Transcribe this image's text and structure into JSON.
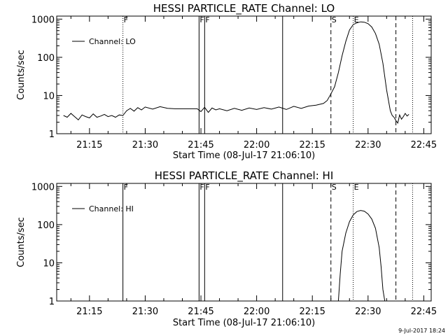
{
  "footer": {
    "date_stamp": "9-Jul-2017 18:24"
  },
  "chart_data": [
    {
      "type": "line",
      "title": "HESSI PARTICLE_RATE Channel: LO",
      "xlabel": "Start Time (08-Jul-17 21:06:10)",
      "ylabel": "Counts/sec",
      "legend": {
        "text": "Channel: LO",
        "position": "top-left"
      },
      "x_ticks": [
        "21:15",
        "21:30",
        "21:45",
        "22:00",
        "22:15",
        "22:30",
        "22:45"
      ],
      "x_tick_minutes": [
        15,
        30,
        45,
        60,
        75,
        90,
        105
      ],
      "xlim_minutes": [
        6.17,
        107
      ],
      "y_scale": "log",
      "y_ticks": [
        "1",
        "10",
        "100",
        "1000"
      ],
      "ylim": [
        1,
        1200
      ],
      "grid": false,
      "markers": [
        {
          "minutes": 24.0,
          "style": "dotted",
          "label": "F"
        },
        {
          "minutes": 44.5,
          "style": "solid",
          "label": "F"
        },
        {
          "minutes": 46.0,
          "style": "solid",
          "label": "F"
        },
        {
          "minutes": 67.0,
          "style": "solid",
          "label": ""
        },
        {
          "minutes": 80.0,
          "style": "dashed",
          "label": "S"
        },
        {
          "minutes": 86.0,
          "style": "dotted",
          "label": "E"
        },
        {
          "minutes": 97.5,
          "style": "dashed",
          "label": ""
        },
        {
          "minutes": 102.0,
          "style": "dotted",
          "label": ""
        }
      ],
      "series": [
        {
          "name": "Channel: LO",
          "x": [
            8,
            9,
            10,
            11,
            12,
            13,
            14,
            15,
            16,
            17,
            18,
            19,
            20,
            21,
            22,
            23,
            24,
            25,
            26,
            27,
            28,
            29,
            30,
            32,
            34,
            36,
            38,
            40,
            42,
            44,
            45,
            46,
            47,
            48,
            49,
            50,
            52,
            54,
            56,
            58,
            60,
            62,
            64,
            66,
            68,
            70,
            72,
            74,
            76,
            78,
            79,
            80,
            81,
            82,
            83,
            84,
            85,
            86,
            87,
            88,
            89,
            90,
            91,
            92,
            93,
            94,
            95,
            96,
            96.5,
            97,
            97.5,
            98,
            98.5,
            99,
            99.5,
            100,
            100.5,
            101
          ],
          "y": [
            3.0,
            2.7,
            3.4,
            2.8,
            2.3,
            3.1,
            2.8,
            2.6,
            3.3,
            2.7,
            2.9,
            3.2,
            2.8,
            3.0,
            2.7,
            3.1,
            3.0,
            4.0,
            4.6,
            3.9,
            4.8,
            4.2,
            5.0,
            4.4,
            5.1,
            4.6,
            4.5,
            4.5,
            4.5,
            4.5,
            3.8,
            4.9,
            3.6,
            4.7,
            4.2,
            4.5,
            4.0,
            4.6,
            4.1,
            4.7,
            4.3,
            4.8,
            4.4,
            5.0,
            4.3,
            5.2,
            4.6,
            5.3,
            5.6,
            6.2,
            7.4,
            11.0,
            17.0,
            40.0,
            110.0,
            260.0,
            520.0,
            720.0,
            800.0,
            850.0,
            830.0,
            760.0,
            620.0,
            420.0,
            220.0,
            70.0,
            14.0,
            4.0,
            3.0,
            2.7,
            2.2,
            1.9,
            3.1,
            2.4,
            2.8,
            3.4,
            2.9,
            3.2
          ]
        }
      ]
    },
    {
      "type": "line",
      "title": "HESSI PARTICLE_RATE Channel: HI",
      "xlabel": "Start Time (08-Jul-17 21:06:10)",
      "ylabel": "Counts/sec",
      "legend": {
        "text": "Channel: HI",
        "position": "top-left"
      },
      "x_ticks": [
        "21:15",
        "21:30",
        "21:45",
        "22:00",
        "22:15",
        "22:30",
        "22:45"
      ],
      "x_tick_minutes": [
        15,
        30,
        45,
        60,
        75,
        90,
        105
      ],
      "xlim_minutes": [
        6.17,
        107
      ],
      "y_scale": "log",
      "y_ticks": [
        "1",
        "10",
        "100",
        "1000"
      ],
      "ylim": [
        1,
        1200
      ],
      "grid": false,
      "markers": [
        {
          "minutes": 24.0,
          "style": "solid",
          "label": "F"
        },
        {
          "minutes": 44.5,
          "style": "solid",
          "label": "F"
        },
        {
          "minutes": 46.0,
          "style": "solid",
          "label": "F"
        },
        {
          "minutes": 67.0,
          "style": "solid",
          "label": ""
        },
        {
          "minutes": 80.0,
          "style": "dashed",
          "label": "S"
        },
        {
          "minutes": 86.0,
          "style": "dotted",
          "label": "E"
        },
        {
          "minutes": 97.5,
          "style": "dashed",
          "label": ""
        },
        {
          "minutes": 102.0,
          "style": "dotted",
          "label": ""
        }
      ],
      "series": [
        {
          "name": "Channel: HI",
          "x": [
            82.0,
            82.5,
            83,
            84,
            85,
            86,
            87,
            88,
            89,
            90,
            91,
            92,
            93,
            93.5,
            94,
            94.5
          ],
          "y": [
            1.0,
            5.0,
            20.0,
            60.0,
            120.0,
            180.0,
            220.0,
            235.0,
            225.0,
            190.0,
            140.0,
            80.0,
            25.0,
            8.0,
            2.0,
            1.0
          ]
        }
      ]
    }
  ]
}
